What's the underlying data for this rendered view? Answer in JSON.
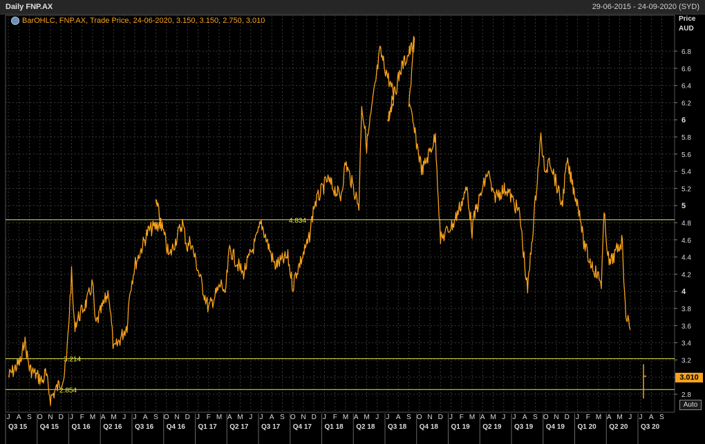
{
  "header": {
    "title": "Daily FNP.AX",
    "date_range": "29-06-2015 - 24-09-2020 (SYD)"
  },
  "legend": {
    "text": "BarOHLC, FNP.AX, Trade Price, 24-06-2020, 3.150, 3.150, 2.750, 3.010",
    "icon": "info-icon"
  },
  "axis": {
    "price_label": "Price",
    "currency_label": "AUD",
    "auto_label": "Auto"
  },
  "colors": {
    "background": "#000000",
    "series": "#f7a21c",
    "hline": "#e8e84a",
    "grid": "#3a3a3a"
  },
  "chart_data": {
    "type": "line",
    "title": "Daily FNP.AX",
    "ylabel": "Price AUD",
    "ylim": [
      2.62,
      7.05
    ],
    "y_ticks": [
      "2.8",
      "3",
      "3.2",
      "3.4",
      "3.6",
      "3.8",
      "4",
      "4.2",
      "4.4",
      "4.6",
      "4.8",
      "5",
      "5.2",
      "5.4",
      "5.6",
      "5.8",
      "6",
      "6.2",
      "6.4",
      "6.6",
      "6.8"
    ],
    "x_month_labels": [
      "J",
      "A",
      "S",
      "O",
      "N",
      "D",
      "J",
      "F",
      "M",
      "A",
      "M",
      "J",
      "J",
      "A",
      "S",
      "O",
      "N",
      "D",
      "J",
      "F",
      "M",
      "A",
      "M",
      "J",
      "J",
      "A",
      "S",
      "O",
      "N",
      "D",
      "J",
      "F",
      "M",
      "A",
      "M",
      "J",
      "J",
      "A",
      "S",
      "O",
      "N",
      "D",
      "J",
      "F",
      "M",
      "A",
      "M",
      "J",
      "J",
      "A",
      "S",
      "O",
      "N",
      "D",
      "J",
      "F",
      "M",
      "A",
      "M",
      "J",
      "J",
      "A",
      "S"
    ],
    "x_quarter_labels": [
      "Q3 15",
      "Q4 15",
      "Q1 16",
      "Q2 16",
      "Q3 16",
      "Q4 16",
      "Q1 17",
      "Q2 17",
      "Q3 17",
      "Q4 17",
      "Q1 18",
      "Q2 18",
      "Q3 18",
      "Q4 18",
      "Q1 19",
      "Q2 19",
      "Q3 19",
      "Q4 19",
      "Q1 20",
      "Q2 20",
      "Q3 20"
    ],
    "series": [
      {
        "x": [
          "2015-07",
          "2015-08",
          "2015-08",
          "2015-09",
          "2015-10",
          "2015-10",
          "2015-11",
          "2015-12",
          "2015-12",
          "2016-01",
          "2016-01",
          "2016-02",
          "2016-03",
          "2016-03",
          "2016-04",
          "2016-05",
          "2016-06",
          "2016-06",
          "2016-07",
          "2016-08",
          "2016-09",
          "2016-09",
          "2016-10",
          "2016-11",
          "2016-12",
          "2016-12",
          "2017-01",
          "2017-02",
          "2017-03",
          "2017-03",
          "2017-04",
          "2017-05",
          "2017-06",
          "2017-07",
          "2017-08",
          "2017-09",
          "2017-10",
          "2017-10",
          "2017-11",
          "2017-12",
          "2018-01",
          "2018-02",
          "2018-03",
          "2018-04",
          "2018-04",
          "2018-05",
          "2018-06",
          "2018-07",
          "2018-07",
          "2018-08",
          "2018-09",
          "2018-09",
          "2018-10",
          "2018-11",
          "2018-12",
          "2019-01",
          "2019-02",
          "2019-03",
          "2019-03",
          "2019-04",
          "2019-05",
          "2019-06",
          "2019-07",
          "2019-08",
          "2019-08",
          "2019-09",
          "2019-10",
          "2019-10",
          "2019-11",
          "2019-12",
          "2020-01",
          "2020-01",
          "2020-02",
          "2020-03",
          "2020-03",
          "2020-04",
          "2020-05",
          "2020-05",
          "2020-06"
        ],
        "values": [
          3.0,
          3.2,
          3.45,
          3.1,
          2.95,
          3.05,
          2.75,
          3.0,
          3.2,
          4.2,
          3.6,
          3.9,
          4.1,
          3.6,
          4.0,
          3.3,
          3.6,
          4.0,
          4.3,
          4.7,
          4.8,
          5.05,
          4.4,
          4.8,
          4.5,
          4.6,
          4.0,
          3.8,
          4.1,
          3.9,
          4.5,
          4.2,
          4.6,
          4.8,
          4.3,
          4.4,
          4.05,
          4.2,
          4.6,
          5.0,
          5.3,
          5.1,
          5.5,
          5.0,
          6.2,
          5.7,
          6.8,
          6.3,
          6.0,
          6.6,
          6.9,
          6.2,
          5.4,
          5.8,
          4.6,
          4.8,
          5.2,
          4.7,
          4.9,
          5.4,
          5.1,
          5.2,
          4.9,
          4.3,
          4.0,
          5.8,
          5.3,
          5.6,
          5.0,
          5.5,
          4.9,
          4.6,
          4.4,
          4.1,
          4.9,
          4.3,
          4.6,
          3.8,
          3.55
        ]
      }
    ],
    "horizontal_lines": [
      {
        "value": 4.834,
        "label": "4.834"
      },
      {
        "value": 3.214,
        "label": "3.214"
      },
      {
        "value": 2.854,
        "label": "2.854"
      }
    ],
    "last_bar": {
      "date": "24-06-2020",
      "open": 3.15,
      "high": 3.15,
      "low": 2.75,
      "close": 3.01
    },
    "last_value_label": "3.010",
    "grid": true
  }
}
